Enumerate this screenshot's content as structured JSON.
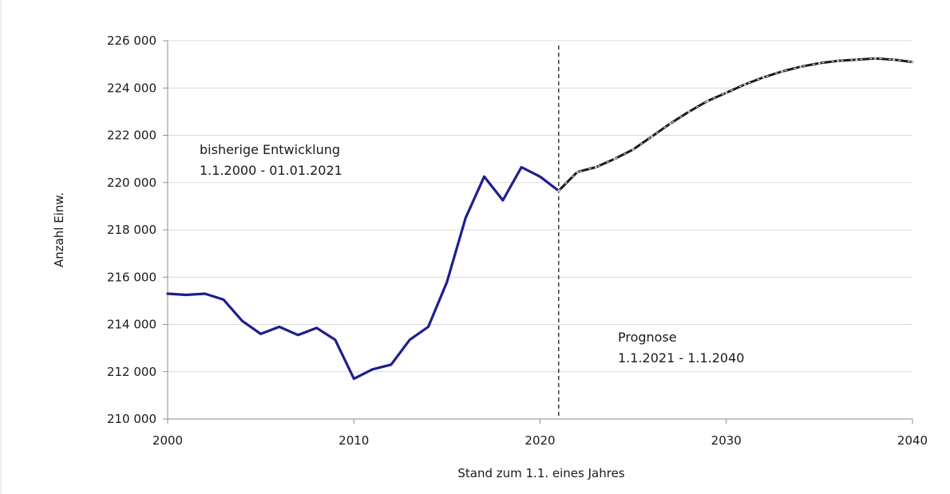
{
  "chart_data": {
    "type": "line",
    "xlabel": "Stand zum 1.1. eines Jahres",
    "ylabel": "Anzahl Einw.",
    "xlim": [
      2000,
      2040
    ],
    "ylim": [
      210000,
      226000
    ],
    "x_ticks": [
      2000,
      2010,
      2020,
      2030,
      2040
    ],
    "x_tick_labels": [
      "2000",
      "2010",
      "2020",
      "2030",
      "2040"
    ],
    "y_ticks": [
      210000,
      212000,
      214000,
      216000,
      218000,
      220000,
      222000,
      224000,
      226000
    ],
    "y_tick_labels": [
      "210 000",
      "212 000",
      "214 000",
      "216 000",
      "218 000",
      "220 000",
      "222 000",
      "224 000",
      "226 000"
    ],
    "grid": "horizontal",
    "colors": {
      "history": "#1f1f8c",
      "forecast": "#1a1a1a",
      "forecast_dash": "#ffffff",
      "divider": "#1a1a1a"
    },
    "series": [
      {
        "style": "solid",
        "x": [
          2000,
          2001,
          2002,
          2003,
          2004,
          2005,
          2006,
          2007,
          2008,
          2009,
          2010,
          2011,
          2012,
          2013,
          2014,
          2015,
          2016,
          2017,
          2018,
          2019,
          2020,
          2021
        ],
        "values": [
          215300,
          215250,
          215300,
          215050,
          214150,
          213600,
          213900,
          213550,
          213850,
          213350,
          211700,
          212100,
          212300,
          213350,
          213900,
          215800,
          218500,
          220250,
          219250,
          220650,
          220250,
          219650
        ]
      },
      {
        "style": "dashed",
        "x": [
          2021,
          2022,
          2023,
          2024,
          2025,
          2026,
          2027,
          2028,
          2029,
          2030,
          2031,
          2032,
          2033,
          2034,
          2035,
          2036,
          2037,
          2038,
          2039,
          2040
        ],
        "values": [
          219650,
          220450,
          220650,
          221000,
          221400,
          221950,
          222500,
          223000,
          223450,
          223800,
          224150,
          224450,
          224700,
          224900,
          225050,
          225150,
          225200,
          225250,
          225200,
          225100
        ]
      }
    ],
    "divider_x": 2021,
    "annotations": [
      {
        "lines": [
          "bisherige Entwicklung",
          "1.1.2000 - 01.01.2021"
        ]
      },
      {
        "lines": [
          "Prognose",
          "1.1.2021 - 1.1.2040"
        ]
      }
    ]
  }
}
